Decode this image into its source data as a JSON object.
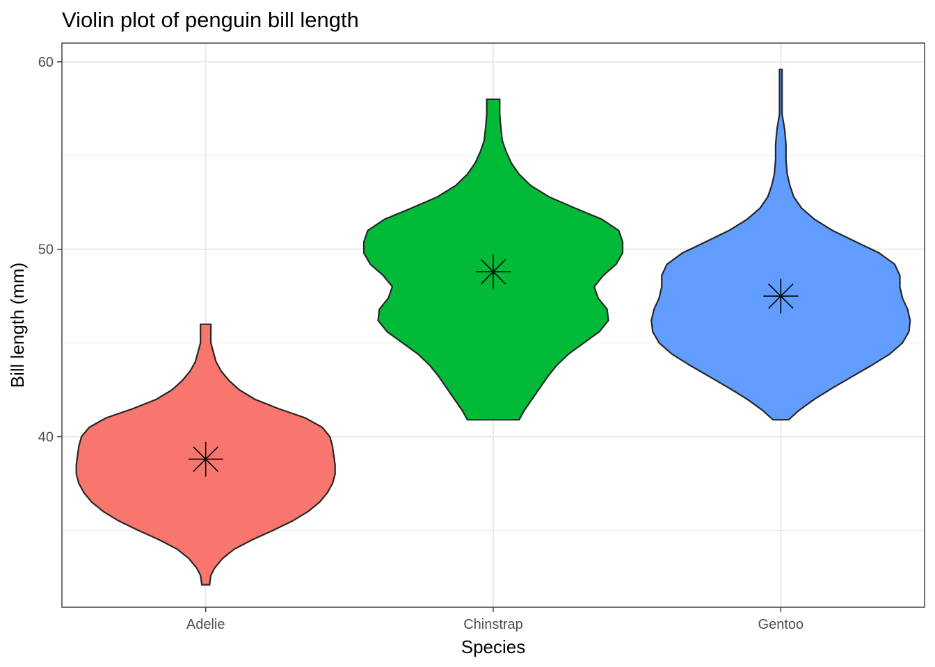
{
  "chart_data": {
    "type": "violin",
    "title": "Violin plot of penguin bill length",
    "xlabel": "Species",
    "ylabel": "Bill length (mm)",
    "categories": [
      "Adelie",
      "Chinstrap",
      "Gentoo"
    ],
    "ylim": [
      30.9,
      61.0
    ],
    "yticks": [
      40,
      50,
      60
    ],
    "grid": true,
    "legend": "none",
    "colors": {
      "Adelie": "#F8766D",
      "Chinstrap": "#00BA38",
      "Gentoo": "#619CFF"
    },
    "violins": [
      {
        "category": "Adelie",
        "min": 32.1,
        "max": 46.0,
        "median_marker": 38.8,
        "profile": [
          [
            32.1,
            0.03
          ],
          [
            32.6,
            0.04
          ],
          [
            33.0,
            0.07
          ],
          [
            33.5,
            0.13
          ],
          [
            34.0,
            0.22
          ],
          [
            34.5,
            0.36
          ],
          [
            35.0,
            0.52
          ],
          [
            35.5,
            0.67
          ],
          [
            36.0,
            0.79
          ],
          [
            36.5,
            0.88
          ],
          [
            37.0,
            0.94
          ],
          [
            37.5,
            0.98
          ],
          [
            38.0,
            1.0
          ],
          [
            38.5,
            1.0
          ],
          [
            39.0,
            0.99
          ],
          [
            39.5,
            0.98
          ],
          [
            40.0,
            0.96
          ],
          [
            40.5,
            0.9
          ],
          [
            41.0,
            0.77
          ],
          [
            41.5,
            0.56
          ],
          [
            42.0,
            0.38
          ],
          [
            42.5,
            0.26
          ],
          [
            43.0,
            0.18
          ],
          [
            43.5,
            0.12
          ],
          [
            44.0,
            0.08
          ],
          [
            44.5,
            0.06
          ],
          [
            45.0,
            0.04
          ],
          [
            45.5,
            0.04
          ],
          [
            46.0,
            0.04
          ]
        ]
      },
      {
        "category": "Chinstrap",
        "min": 40.9,
        "max": 58.0,
        "median_marker": 48.8,
        "profile": [
          [
            40.9,
            0.2
          ],
          [
            41.4,
            0.24
          ],
          [
            42.0,
            0.3
          ],
          [
            42.6,
            0.36
          ],
          [
            43.2,
            0.42
          ],
          [
            43.8,
            0.49
          ],
          [
            44.4,
            0.58
          ],
          [
            45.0,
            0.7
          ],
          [
            45.6,
            0.82
          ],
          [
            46.2,
            0.89
          ],
          [
            46.8,
            0.88
          ],
          [
            47.4,
            0.81
          ],
          [
            48.0,
            0.78
          ],
          [
            48.6,
            0.85
          ],
          [
            49.2,
            0.95
          ],
          [
            49.8,
            1.0
          ],
          [
            50.4,
            1.0
          ],
          [
            51.0,
            0.97
          ],
          [
            51.6,
            0.84
          ],
          [
            52.2,
            0.63
          ],
          [
            52.8,
            0.43
          ],
          [
            53.4,
            0.29
          ],
          [
            54.0,
            0.2
          ],
          [
            54.6,
            0.14
          ],
          [
            55.2,
            0.1
          ],
          [
            55.8,
            0.07
          ],
          [
            56.4,
            0.06
          ],
          [
            57.2,
            0.05
          ],
          [
            58.0,
            0.05
          ]
        ]
      },
      {
        "category": "Gentoo",
        "min": 40.9,
        "max": 59.6,
        "median_marker": 47.5,
        "profile": [
          [
            40.9,
            0.06
          ],
          [
            41.4,
            0.14
          ],
          [
            42.0,
            0.26
          ],
          [
            42.6,
            0.4
          ],
          [
            43.2,
            0.55
          ],
          [
            43.8,
            0.7
          ],
          [
            44.4,
            0.84
          ],
          [
            45.0,
            0.94
          ],
          [
            45.6,
            0.99
          ],
          [
            46.2,
            1.0
          ],
          [
            46.8,
            0.98
          ],
          [
            47.4,
            0.94
          ],
          [
            48.0,
            0.92
          ],
          [
            48.6,
            0.92
          ],
          [
            49.2,
            0.88
          ],
          [
            49.8,
            0.76
          ],
          [
            50.4,
            0.58
          ],
          [
            51.0,
            0.4
          ],
          [
            51.6,
            0.26
          ],
          [
            52.2,
            0.16
          ],
          [
            52.8,
            0.1
          ],
          [
            53.4,
            0.07
          ],
          [
            54.0,
            0.05
          ],
          [
            54.8,
            0.04
          ],
          [
            55.6,
            0.04
          ],
          [
            56.4,
            0.03
          ],
          [
            57.2,
            0.01
          ],
          [
            58.0,
            0.01
          ],
          [
            58.8,
            0.01
          ],
          [
            59.6,
            0.01
          ]
        ]
      }
    ]
  }
}
